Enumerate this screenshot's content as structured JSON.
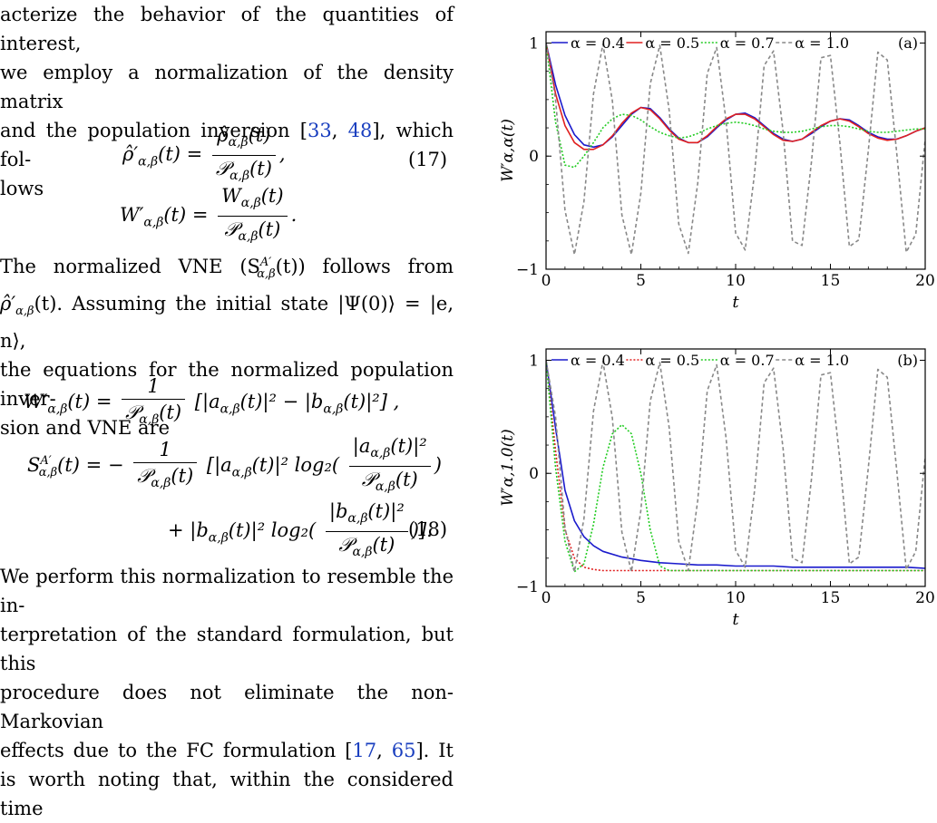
{
  "text": {
    "p1_a": "acterize the behavior of the quantities of interest,",
    "p1_b": "we employ a normalization of the density matrix",
    "p1_c": "and the population inversion [",
    "p1_cite1": "33",
    "p1_sep": ", ",
    "p1_cite2": "48",
    "p1_d": "], which fol-",
    "p1_e": "lows",
    "eq17_num": "(17)",
    "p2_a": "The normalized VNE (S",
    "p2_b": "(t)) follows from",
    "p2_c": "ρ̂′",
    "p2_d": "(t). Assuming the initial state |Ψ(0)⟩ = |e, n⟩,",
    "p2_e": "the equations for the normalized population inver-",
    "p2_f": "sion and VNE are",
    "eq18_num": "(18)",
    "p3_a": "We perform this normalization to resemble the in-",
    "p3_b": "terpretation of the standard formulation, but this",
    "p3_c": "procedure does not eliminate the non-Markovian",
    "p3_d": "effects due to the FC formulation [",
    "p3_cite1": "17",
    "p3_sep": ", ",
    "p3_cite2": "65",
    "p3_e": "].   It",
    "p3_f": "is worth noting that, within the considered time"
  },
  "chart_data": [
    {
      "type": "line",
      "panel_label": "(a)",
      "xlabel": "t",
      "ylabel": "W′α,α(t)",
      "xlim": [
        0,
        20
      ],
      "ylim": [
        -1,
        1.1
      ],
      "xticks": [
        0,
        5,
        10,
        15,
        20
      ],
      "yticks": [
        -1,
        0,
        1
      ],
      "legend_placement": "top",
      "series": [
        {
          "name": "α = 0.4",
          "color": "#1a1acc",
          "dash": "solid",
          "x": [
            0,
            0.5,
            1,
            1.5,
            2,
            2.5,
            3,
            3.5,
            4,
            4.5,
            5,
            5.5,
            6,
            6.5,
            7,
            7.5,
            8,
            8.5,
            9,
            9.5,
            10,
            10.5,
            11,
            11.5,
            12,
            12.5,
            13,
            13.5,
            14,
            14.5,
            15,
            15.5,
            16,
            16.5,
            17,
            17.5,
            18,
            18.5,
            19,
            19.5,
            20
          ],
          "y": [
            1,
            0.63,
            0.36,
            0.19,
            0.1,
            0.08,
            0.1,
            0.17,
            0.27,
            0.37,
            0.43,
            0.42,
            0.34,
            0.24,
            0.16,
            0.12,
            0.12,
            0.17,
            0.25,
            0.32,
            0.37,
            0.38,
            0.34,
            0.27,
            0.2,
            0.15,
            0.13,
            0.15,
            0.2,
            0.26,
            0.31,
            0.33,
            0.32,
            0.27,
            0.21,
            0.17,
            0.15,
            0.15,
            0.18,
            0.22,
            0.25
          ]
        },
        {
          "name": "α = 0.5",
          "color": "#e02020",
          "dash": "solid",
          "x": [
            0,
            0.5,
            1,
            1.5,
            2,
            2.5,
            3,
            3.5,
            4,
            4.5,
            5,
            5.5,
            6,
            6.5,
            7,
            7.5,
            8,
            8.5,
            9,
            9.5,
            10,
            10.5,
            11,
            11.5,
            12,
            12.5,
            13,
            13.5,
            14,
            14.5,
            15,
            15.5,
            16,
            16.5,
            17,
            17.5,
            18,
            18.5,
            19,
            19.5,
            20
          ],
          "y": [
            1,
            0.55,
            0.27,
            0.12,
            0.06,
            0.06,
            0.1,
            0.18,
            0.29,
            0.38,
            0.43,
            0.41,
            0.33,
            0.23,
            0.15,
            0.12,
            0.12,
            0.18,
            0.26,
            0.33,
            0.37,
            0.37,
            0.33,
            0.26,
            0.19,
            0.14,
            0.13,
            0.15,
            0.21,
            0.27,
            0.31,
            0.33,
            0.31,
            0.26,
            0.2,
            0.16,
            0.14,
            0.15,
            0.18,
            0.22,
            0.25
          ]
        },
        {
          "name": "α = 0.7",
          "color": "#22cc22",
          "dash": "dotted",
          "x": [
            0,
            0.5,
            1,
            1.5,
            2,
            2.5,
            3,
            3.5,
            4,
            4.5,
            5,
            5.5,
            6,
            6.5,
            7,
            7.5,
            8,
            8.5,
            9,
            9.5,
            10,
            10.5,
            11,
            11.5,
            12,
            12.5,
            13,
            13.5,
            14,
            14.5,
            15,
            15.5,
            16,
            16.5,
            17,
            17.5,
            18,
            18.5,
            19,
            19.5,
            20
          ],
          "y": [
            1,
            0.3,
            -0.08,
            -0.1,
            0.0,
            0.12,
            0.25,
            0.33,
            0.37,
            0.36,
            0.32,
            0.26,
            0.21,
            0.18,
            0.16,
            0.17,
            0.2,
            0.24,
            0.27,
            0.29,
            0.3,
            0.29,
            0.27,
            0.24,
            0.22,
            0.21,
            0.21,
            0.22,
            0.24,
            0.26,
            0.27,
            0.27,
            0.26,
            0.24,
            0.22,
            0.21,
            0.21,
            0.22,
            0.23,
            0.24,
            0.24
          ]
        },
        {
          "name": "α = 1.0",
          "color": "#888888",
          "dash": "dashed",
          "x": [
            0,
            0.5,
            1,
            1.5,
            2,
            2.5,
            3,
            3.5,
            4,
            4.5,
            5,
            5.5,
            6,
            6.5,
            7,
            7.5,
            8,
            8.5,
            9,
            9.5,
            10,
            10.5,
            11,
            11.5,
            12,
            12.5,
            13,
            13.5,
            14,
            14.5,
            15,
            15.5,
            16,
            16.5,
            17,
            17.5,
            18,
            18.5,
            19,
            19.5,
            20
          ],
          "y": [
            1,
            0.5,
            -0.48,
            -0.87,
            -0.4,
            0.55,
            0.99,
            0.49,
            -0.52,
            -0.87,
            -0.33,
            0.64,
            0.98,
            0.4,
            -0.6,
            -0.86,
            -0.24,
            0.73,
            0.96,
            0.31,
            -0.68,
            -0.83,
            -0.15,
            0.8,
            0.93,
            0.22,
            -0.75,
            -0.79,
            -0.05,
            0.87,
            0.89,
            0.12,
            -0.8,
            -0.74,
            0.05,
            0.92,
            0.85,
            0.02,
            -0.85,
            -0.69,
            0.15
          ]
        }
      ]
    },
    {
      "type": "line",
      "panel_label": "(b)",
      "xlabel": "t",
      "ylabel": "W′α,1.0(t)",
      "xlim": [
        0,
        20
      ],
      "ylim": [
        -1,
        1.1
      ],
      "xticks": [
        0,
        5,
        10,
        15,
        20
      ],
      "yticks": [
        -1,
        0,
        1
      ],
      "legend_placement": "top",
      "series": [
        {
          "name": "α = 0.4",
          "color": "#1a1acc",
          "dash": "solid",
          "x": [
            0,
            0.5,
            1,
            1.5,
            2,
            2.5,
            3,
            4,
            5,
            6,
            7,
            8,
            9,
            10,
            11,
            12,
            13,
            14,
            15,
            16,
            17,
            18,
            19,
            20
          ],
          "y": [
            1,
            0.4,
            -0.15,
            -0.42,
            -0.56,
            -0.64,
            -0.69,
            -0.74,
            -0.77,
            -0.79,
            -0.8,
            -0.81,
            -0.81,
            -0.82,
            -0.82,
            -0.82,
            -0.83,
            -0.83,
            -0.83,
            -0.83,
            -0.83,
            -0.83,
            -0.83,
            -0.84
          ]
        },
        {
          "name": "α = 0.5",
          "color": "#e02020",
          "dash": "dotted",
          "x": [
            0,
            0.5,
            1,
            1.5,
            2,
            2.5,
            3,
            4,
            5,
            6,
            7,
            8,
            9,
            10,
            11,
            12,
            13,
            14,
            15,
            16,
            17,
            18,
            19,
            20
          ],
          "y": [
            1,
            0.2,
            -0.5,
            -0.75,
            -0.83,
            -0.85,
            -0.86,
            -0.86,
            -0.86,
            -0.86,
            -0.86,
            -0.86,
            -0.86,
            -0.86,
            -0.86,
            -0.86,
            -0.86,
            -0.86,
            -0.86,
            -0.86,
            -0.86,
            -0.86,
            -0.86,
            -0.86
          ]
        },
        {
          "name": "α = 0.7",
          "color": "#22cc22",
          "dash": "dotted",
          "x": [
            0,
            0.5,
            1,
            1.5,
            2,
            2.5,
            3,
            3.5,
            4,
            4.5,
            5,
            5.5,
            6,
            6.5,
            7,
            8,
            9,
            10,
            12,
            14,
            16,
            18,
            20
          ],
          "y": [
            1,
            0.05,
            -0.6,
            -0.87,
            -0.8,
            -0.45,
            0.05,
            0.35,
            0.43,
            0.35,
            0.0,
            -0.5,
            -0.82,
            -0.86,
            -0.86,
            -0.86,
            -0.86,
            -0.86,
            -0.86,
            -0.86,
            -0.86,
            -0.86,
            -0.86
          ]
        },
        {
          "name": "α = 1.0",
          "color": "#888888",
          "dash": "dashed",
          "x": [
            0,
            0.5,
            1,
            1.5,
            2,
            2.5,
            3,
            3.5,
            4,
            4.5,
            5,
            5.5,
            6,
            6.5,
            7,
            7.5,
            8,
            8.5,
            9,
            9.5,
            10,
            10.5,
            11,
            11.5,
            12,
            12.5,
            13,
            13.5,
            14,
            14.5,
            15,
            15.5,
            16,
            16.5,
            17,
            17.5,
            18,
            18.5,
            19,
            19.5,
            20
          ],
          "y": [
            1,
            0.5,
            -0.48,
            -0.87,
            -0.4,
            0.55,
            0.99,
            0.49,
            -0.52,
            -0.87,
            -0.33,
            0.64,
            0.98,
            0.4,
            -0.6,
            -0.86,
            -0.24,
            0.73,
            0.96,
            0.31,
            -0.68,
            -0.83,
            -0.15,
            0.8,
            0.93,
            0.22,
            -0.75,
            -0.79,
            -0.05,
            0.87,
            0.89,
            0.12,
            -0.8,
            -0.74,
            0.05,
            0.92,
            0.85,
            0.02,
            -0.85,
            -0.69,
            0.15
          ]
        }
      ]
    }
  ]
}
